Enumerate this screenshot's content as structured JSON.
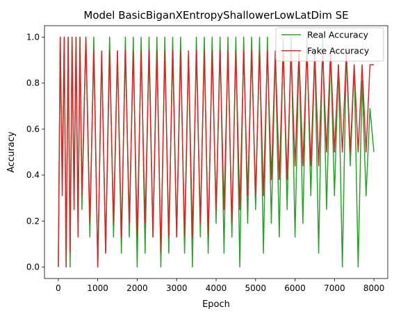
{
  "chart_data": {
    "type": "line",
    "title": "Model BasicBiganXEntropyShallowerLowLatDim SE",
    "xlabel": "Epoch",
    "ylabel": "Accuracy",
    "xlim": [
      -350,
      8350
    ],
    "ylim": [
      -0.05,
      1.05
    ],
    "xticks": [
      0,
      1000,
      2000,
      3000,
      4000,
      5000,
      6000,
      7000,
      8000
    ],
    "yticks": [
      0.0,
      0.2,
      0.4,
      0.6,
      0.8,
      1.0
    ],
    "xtick_labels": [
      "0",
      "1000",
      "2000",
      "3000",
      "4000",
      "5000",
      "6000",
      "7000",
      "8000"
    ],
    "ytick_labels": [
      "0.0",
      "0.2",
      "0.4",
      "0.6",
      "0.8",
      "1.0"
    ],
    "grid": false,
    "legend_position": "top-right",
    "series": [
      {
        "name": "Real Accuracy",
        "color": "#2ca02c",
        "x": [
          0,
          50,
          100,
          150,
          200,
          250,
          300,
          350,
          400,
          450,
          500,
          550,
          600,
          700,
          800,
          900,
          1000,
          1100,
          1200,
          1300,
          1400,
          1500,
          1600,
          1700,
          1800,
          1900,
          2000,
          2100,
          2200,
          2300,
          2400,
          2500,
          2600,
          2700,
          2800,
          2900,
          3000,
          3100,
          3200,
          3300,
          3400,
          3500,
          3600,
          3700,
          3800,
          3900,
          4000,
          4100,
          4200,
          4300,
          4400,
          4500,
          4600,
          4700,
          4800,
          4900,
          5000,
          5100,
          5200,
          5300,
          5400,
          5500,
          5600,
          5700,
          5800,
          5900,
          6000,
          6100,
          6200,
          6300,
          6400,
          6500,
          6600,
          6700,
          6800,
          6900,
          7000,
          7100,
          7200,
          7300,
          7400,
          7500,
          7600,
          7700,
          7800,
          7900,
          8000
        ],
        "y": [
          0.0,
          1.0,
          0.38,
          1.0,
          0.0,
          1.0,
          0.0,
          1.0,
          0.31,
          1.0,
          0.19,
          1.0,
          0.25,
          1.0,
          0.13,
          1.0,
          0.0,
          0.94,
          0.06,
          1.0,
          0.13,
          0.94,
          0.06,
          1.0,
          0.13,
          1.0,
          0.0,
          1.0,
          0.06,
          1.0,
          0.13,
          1.0,
          0.0,
          1.0,
          0.06,
          1.0,
          0.13,
          1.0,
          0.06,
          0.94,
          0.0,
          1.0,
          0.13,
          1.0,
          0.06,
          1.0,
          0.19,
          1.0,
          0.06,
          1.0,
          0.13,
          1.0,
          0.0,
          1.0,
          0.19,
          1.0,
          0.25,
          1.0,
          0.06,
          1.0,
          0.19,
          0.94,
          0.13,
          1.0,
          0.25,
          1.0,
          0.13,
          0.94,
          0.19,
          1.0,
          0.31,
          0.94,
          0.06,
          1.0,
          0.25,
          0.94,
          0.31,
          0.88,
          0.0,
          0.94,
          0.44,
          0.88,
          0.0,
          0.81,
          0.31,
          0.69,
          0.5
        ]
      },
      {
        "name": "Fake Accuracy",
        "color": "#d62728",
        "x": [
          0,
          50,
          100,
          150,
          200,
          250,
          300,
          350,
          400,
          450,
          500,
          550,
          600,
          700,
          800,
          900,
          1000,
          1100,
          1200,
          1300,
          1400,
          1500,
          1600,
          1700,
          1800,
          1900,
          2000,
          2100,
          2200,
          2300,
          2400,
          2500,
          2600,
          2700,
          2800,
          2900,
          3000,
          3100,
          3200,
          3300,
          3400,
          3500,
          3600,
          3700,
          3800,
          3900,
          4000,
          4100,
          4200,
          4300,
          4400,
          4500,
          4600,
          4700,
          4800,
          4900,
          5000,
          5100,
          5200,
          5300,
          5400,
          5500,
          5600,
          5700,
          5800,
          5900,
          6000,
          6100,
          6200,
          6300,
          6400,
          6500,
          6600,
          6700,
          6800,
          6900,
          7000,
          7100,
          7200,
          7300,
          7400,
          7500,
          7600,
          7700,
          7800,
          7900,
          8000
        ],
        "y": [
          0.0,
          1.0,
          0.31,
          1.0,
          0.0,
          1.0,
          0.06,
          1.0,
          0.25,
          1.0,
          0.13,
          1.0,
          0.31,
          1.0,
          0.19,
          0.94,
          0.0,
          0.94,
          0.06,
          0.94,
          0.19,
          0.94,
          0.13,
          0.94,
          0.19,
          0.94,
          0.13,
          0.94,
          0.19,
          0.94,
          0.13,
          0.94,
          0.06,
          0.94,
          0.13,
          0.94,
          0.13,
          0.94,
          0.13,
          0.94,
          0.13,
          0.94,
          0.19,
          0.94,
          0.13,
          0.94,
          0.25,
          0.94,
          0.25,
          0.94,
          0.19,
          0.94,
          0.25,
          0.94,
          0.31,
          0.94,
          0.31,
          0.94,
          0.31,
          0.94,
          0.38,
          0.94,
          0.38,
          0.94,
          0.38,
          0.94,
          0.44,
          0.94,
          0.44,
          0.94,
          0.44,
          0.94,
          0.44,
          0.94,
          0.5,
          0.94,
          0.5,
          0.88,
          0.5,
          0.94,
          0.5,
          0.88,
          0.5,
          0.88,
          0.5,
          0.88,
          0.88
        ]
      }
    ]
  }
}
